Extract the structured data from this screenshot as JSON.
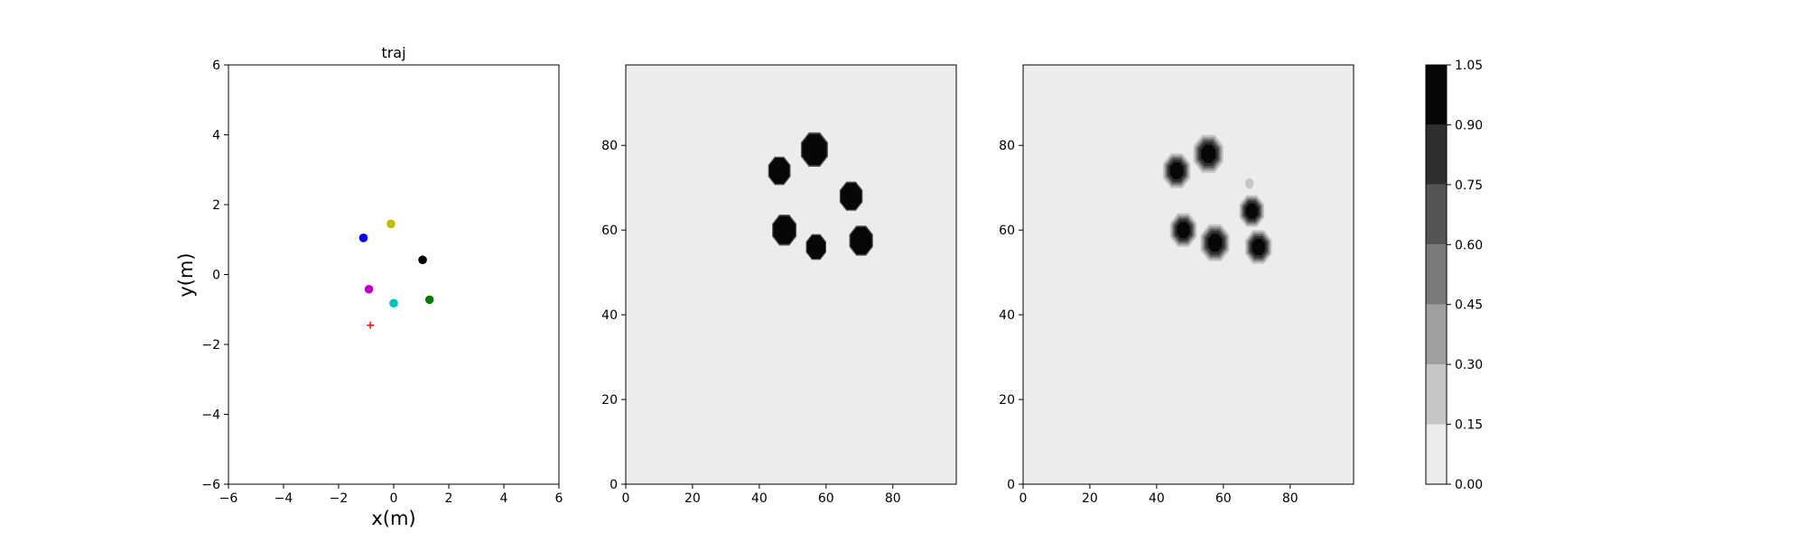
{
  "chart_data": [
    {
      "type": "scatter",
      "title": "traj",
      "xlabel": "x(m)",
      "ylabel": "y(m)",
      "xlim": [
        -6,
        6
      ],
      "ylim": [
        -6,
        6
      ],
      "xticks": [
        -6,
        -4,
        -2,
        0,
        2,
        4,
        6
      ],
      "yticks": [
        -6,
        -4,
        -2,
        0,
        2,
        4,
        6
      ],
      "grid": false,
      "points": [
        {
          "x": -1.1,
          "y": 1.05,
          "color": "#0000ff",
          "marker": "circle"
        },
        {
          "x": -0.1,
          "y": 1.45,
          "color": "#bfbf00",
          "marker": "circle"
        },
        {
          "x": 1.05,
          "y": 0.42,
          "color": "#000000",
          "marker": "circle"
        },
        {
          "x": -0.9,
          "y": -0.42,
          "color": "#bf00bf",
          "marker": "circle"
        },
        {
          "x": 0.0,
          "y": -0.82,
          "color": "#00bfbf",
          "marker": "circle"
        },
        {
          "x": 1.3,
          "y": -0.72,
          "color": "#008000",
          "marker": "circle"
        },
        {
          "x": -0.85,
          "y": -1.45,
          "color": "#ff0000",
          "marker": "plus"
        }
      ]
    },
    {
      "type": "heatmap",
      "title": "",
      "xlim": [
        0,
        99
      ],
      "ylim": [
        0,
        99
      ],
      "xticks": [
        0,
        20,
        40,
        60,
        80
      ],
      "yticks": [
        0,
        20,
        40,
        60,
        80
      ],
      "background_level": 0.05,
      "blobs": [
        {
          "x": 46,
          "y": 74,
          "r": 3.3,
          "level": 1.0
        },
        {
          "x": 56.5,
          "y": 79,
          "r": 4.0,
          "level": 1.0
        },
        {
          "x": 67.5,
          "y": 68,
          "r": 3.4,
          "level": 1.0
        },
        {
          "x": 47.5,
          "y": 60,
          "r": 3.6,
          "level": 1.0
        },
        {
          "x": 57,
          "y": 56,
          "r": 3.0,
          "level": 1.0
        },
        {
          "x": 70.5,
          "y": 57.5,
          "r": 3.5,
          "level": 1.0
        }
      ]
    },
    {
      "type": "heatmap",
      "title": "",
      "xlim": [
        0,
        99
      ],
      "ylim": [
        0,
        99
      ],
      "xticks": [
        0,
        20,
        40,
        60,
        80
      ],
      "yticks": [
        0,
        20,
        40,
        60,
        80
      ],
      "background_level": 0.05,
      "blobs": [
        {
          "x": 46,
          "y": 74,
          "r": 3.3,
          "level": 1.0
        },
        {
          "x": 55.5,
          "y": 78,
          "r": 3.6,
          "level": 1.0
        },
        {
          "x": 68.5,
          "y": 64.5,
          "r": 3.0,
          "level": 1.0
        },
        {
          "x": 48,
          "y": 60,
          "r": 3.2,
          "level": 1.0
        },
        {
          "x": 57.5,
          "y": 57,
          "r": 3.5,
          "level": 1.0
        },
        {
          "x": 70.5,
          "y": 56,
          "r": 3.2,
          "level": 1.0
        },
        {
          "x": 67.8,
          "y": 71,
          "r": 1.3,
          "level": 0.25
        }
      ]
    }
  ],
  "colorbar": {
    "levels": [
      0.0,
      0.15,
      0.3,
      0.45,
      0.6,
      0.75,
      0.9,
      1.05
    ],
    "tick_labels": [
      "0.00",
      "0.15",
      "0.30",
      "0.45",
      "0.60",
      "0.75",
      "0.90",
      "1.05"
    ],
    "colors": [
      "#ececec",
      "#c6c6c6",
      "#9f9f9f",
      "#7a7a7a",
      "#555555",
      "#2f2f2f",
      "#070707"
    ]
  }
}
